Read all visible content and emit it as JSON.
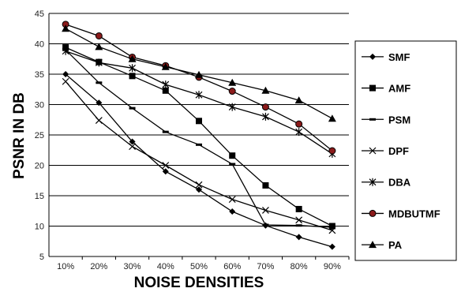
{
  "chart_data": {
    "type": "line",
    "title": "",
    "xlabel": "NOISE DENSITIES",
    "ylabel": "PSNR IN DB",
    "categories": [
      "10%",
      "20%",
      "30%",
      "40%",
      "50%",
      "60%",
      "70%",
      "80%",
      "90%"
    ],
    "ylim": [
      5,
      45
    ],
    "yticks": [
      "5",
      "10",
      "15",
      "20",
      "25",
      "30",
      "35",
      "40",
      "45"
    ],
    "grid": "horizontal",
    "legend": "right",
    "series": [
      {
        "name": "SMF",
        "marker": "diamond",
        "values": [
          35.0,
          30.3,
          23.9,
          19.0,
          16.0,
          12.4,
          10.1,
          8.2,
          6.6
        ]
      },
      {
        "name": "AMF",
        "marker": "square",
        "values": [
          39.4,
          37.0,
          34.7,
          32.3,
          27.3,
          21.6,
          16.7,
          12.8,
          10.0
        ]
      },
      {
        "name": "PSM",
        "marker": "dash",
        "values": [
          39.0,
          33.6,
          29.4,
          25.5,
          23.4,
          20.2,
          10.2,
          10.1,
          9.8
        ]
      },
      {
        "name": "DPF",
        "marker": "x",
        "values": [
          33.8,
          27.4,
          23.1,
          20.0,
          16.8,
          14.4,
          12.6,
          11.0,
          9.3
        ]
      },
      {
        "name": "DBA",
        "marker": "star",
        "values": [
          38.8,
          36.9,
          36.0,
          33.3,
          31.6,
          29.6,
          28.0,
          25.5,
          21.9
        ]
      },
      {
        "name": "MDBUTMF",
        "marker": "circle",
        "values": [
          43.2,
          41.3,
          37.8,
          36.4,
          34.5,
          32.2,
          29.6,
          26.8,
          22.4
        ]
      },
      {
        "name": "PA",
        "marker": "triangle",
        "values": [
          42.5,
          39.5,
          37.5,
          36.2,
          34.9,
          33.6,
          32.3,
          30.7,
          27.7
        ]
      }
    ],
    "colors": {
      "line": "#000000",
      "mdbutmf_fill": "#8b1a1a",
      "grid": "#000000"
    }
  }
}
